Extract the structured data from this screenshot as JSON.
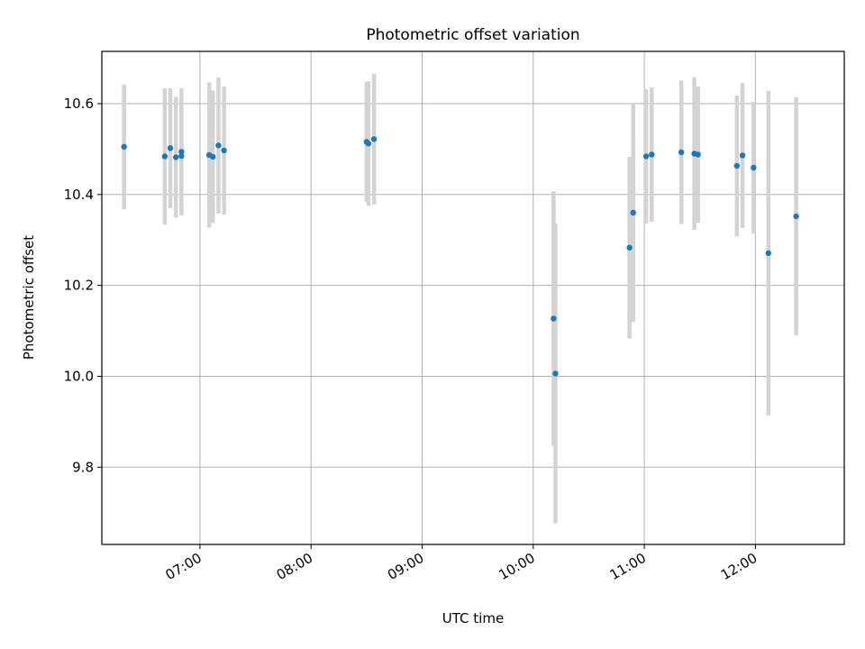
{
  "chart_data": {
    "type": "scatter",
    "title": "Photometric offset variation",
    "xlabel": "UTC time",
    "ylabel": "Photometric offset",
    "xlim": [
      "06:07",
      "12:48"
    ],
    "ylim": [
      9.63,
      10.715
    ],
    "grid": true,
    "x_ticks": [
      "07:00",
      "08:00",
      "09:00",
      "10:00",
      "11:00",
      "12:00"
    ],
    "y_ticks": [
      9.8,
      10.0,
      10.2,
      10.4,
      10.6
    ],
    "colors": {
      "points": "#1f77b4",
      "errorbars": "#d3d3d3",
      "grid": "#b0b0b0"
    },
    "points": [
      {
        "t": "06:19",
        "y": 10.505,
        "err": 0.137
      },
      {
        "t": "06:41",
        "y": 10.484,
        "err": 0.15
      },
      {
        "t": "06:44",
        "y": 10.502,
        "err": 0.132
      },
      {
        "t": "06:47",
        "y": 10.482,
        "err": 0.133
      },
      {
        "t": "06:50",
        "y": 10.494,
        "err": 0.14
      },
      {
        "t": "06:50",
        "y": 10.485,
        "err": 0.13
      },
      {
        "t": "07:05",
        "y": 10.487,
        "err": 0.16
      },
      {
        "t": "07:07",
        "y": 10.483,
        "err": 0.146
      },
      {
        "t": "07:10",
        "y": 10.508,
        "err": 0.15
      },
      {
        "t": "07:13",
        "y": 10.497,
        "err": 0.141
      },
      {
        "t": "08:30",
        "y": 10.516,
        "err": 0.132
      },
      {
        "t": "08:31",
        "y": 10.512,
        "err": 0.137
      },
      {
        "t": "08:34",
        "y": 10.522,
        "err": 0.144
      },
      {
        "t": "10:11",
        "y": 10.127,
        "err": 0.28
      },
      {
        "t": "10:12",
        "y": 10.006,
        "err": 0.33
      },
      {
        "t": "10:52",
        "y": 10.283,
        "err": 0.2
      },
      {
        "t": "10:54",
        "y": 10.36,
        "err": 0.24
      },
      {
        "t": "11:01",
        "y": 10.484,
        "err": 0.148
      },
      {
        "t": "11:04",
        "y": 10.488,
        "err": 0.148
      },
      {
        "t": "11:20",
        "y": 10.493,
        "err": 0.158
      },
      {
        "t": "11:27",
        "y": 10.49,
        "err": 0.168
      },
      {
        "t": "11:29",
        "y": 10.488,
        "err": 0.15
      },
      {
        "t": "11:50",
        "y": 10.463,
        "err": 0.155
      },
      {
        "t": "11:53",
        "y": 10.486,
        "err": 0.16
      },
      {
        "t": "11:59",
        "y": 10.459,
        "err": 0.145
      },
      {
        "t": "12:07",
        "y": 10.271,
        "err": 0.357
      },
      {
        "t": "12:22",
        "y": 10.352,
        "err": 0.262
      }
    ]
  }
}
